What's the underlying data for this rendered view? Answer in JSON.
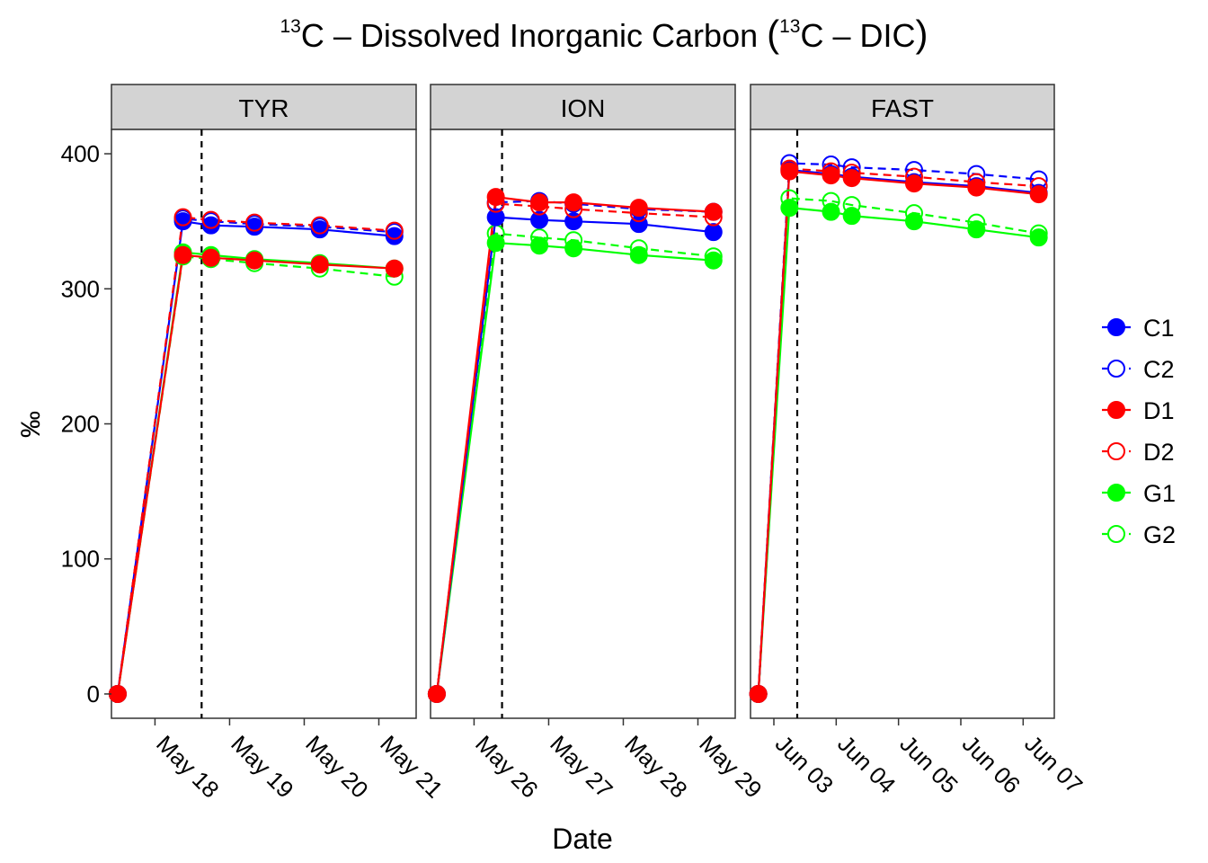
{
  "chart_data": {
    "type": "line",
    "title": {
      "iso1": "13",
      "part1": "C",
      "dash1": "–",
      "part2": "Dissolved Inorganic Carbon",
      "iso2": "13",
      "part3": "C",
      "dash2": "–",
      "part4": "DIC"
    },
    "xlabel": "Date",
    "ylabel": "‰",
    "ylim": [
      -18,
      418
    ],
    "yticks": [
      0,
      100,
      200,
      300,
      400
    ],
    "grid": false,
    "legend_position": "right",
    "series_styles": [
      {
        "name": "C1",
        "color": "#0000ff",
        "filled": true,
        "dashed": false
      },
      {
        "name": "C2",
        "color": "#0000ff",
        "filled": false,
        "dashed": true
      },
      {
        "name": "D1",
        "color": "#ff0000",
        "filled": true,
        "dashed": false
      },
      {
        "name": "D2",
        "color": "#ff0000",
        "filled": false,
        "dashed": true
      },
      {
        "name": "G1",
        "color": "#00ff00",
        "filled": true,
        "dashed": false
      },
      {
        "name": "G2",
        "color": "#00ff00",
        "filled": false,
        "dashed": true
      }
    ],
    "panels": [
      {
        "strip": "TYR",
        "xlim": [
          "2017-05-17T10:00",
          "2017-05-21T12:00"
        ],
        "xticks": [
          {
            "date": "2017-05-18T00:00",
            "label": "May 18"
          },
          {
            "date": "2017-05-19T00:00",
            "label": "May 19"
          },
          {
            "date": "2017-05-20T00:00",
            "label": "May 20"
          },
          {
            "date": "2017-05-21T00:00",
            "label": "May 21"
          }
        ],
        "vline": "2017-05-18T15:00",
        "series": [
          {
            "name": "C1",
            "x": [
              "2017-05-17T12:00",
              "2017-05-18T09:00",
              "2017-05-18T18:00",
              "2017-05-19T08:00",
              "2017-05-20T05:00",
              "2017-05-21T05:00"
            ],
            "y": [
              0,
              350,
              347,
              346,
              344,
              339
            ]
          },
          {
            "name": "C2",
            "x": [
              "2017-05-17T12:00",
              "2017-05-18T09:00",
              "2017-05-18T18:00",
              "2017-05-19T08:00",
              "2017-05-20T05:00",
              "2017-05-21T05:00"
            ],
            "y": [
              0,
              352,
              350,
              348,
              346,
              342
            ]
          },
          {
            "name": "D1",
            "x": [
              "2017-05-17T12:00",
              "2017-05-18T09:00",
              "2017-05-18T18:00",
              "2017-05-19T08:00",
              "2017-05-20T05:00",
              "2017-05-21T05:00"
            ],
            "y": [
              0,
              325,
              323,
              321,
              318,
              315
            ]
          },
          {
            "name": "D2",
            "x": [
              "2017-05-17T12:00",
              "2017-05-18T09:00",
              "2017-05-18T18:00",
              "2017-05-19T08:00",
              "2017-05-20T05:00",
              "2017-05-21T05:00"
            ],
            "y": [
              0,
              353,
              351,
              349,
              347,
              343
            ]
          },
          {
            "name": "G1",
            "x": [
              "2017-05-17T12:00",
              "2017-05-18T09:00",
              "2017-05-18T18:00",
              "2017-05-19T08:00",
              "2017-05-20T05:00",
              "2017-05-21T05:00"
            ],
            "y": [
              0,
              327,
              325,
              322,
              319,
              315
            ]
          },
          {
            "name": "G2",
            "x": [
              "2017-05-17T12:00",
              "2017-05-18T09:00",
              "2017-05-18T18:00",
              "2017-05-19T08:00",
              "2017-05-20T05:00",
              "2017-05-21T05:00"
            ],
            "y": [
              0,
              324,
              322,
              319,
              315,
              309
            ]
          }
        ]
      },
      {
        "strip": "ION",
        "xlim": [
          "2017-05-25T10:00",
          "2017-05-29T12:00"
        ],
        "xticks": [
          {
            "date": "2017-05-26T00:00",
            "label": "May 26"
          },
          {
            "date": "2017-05-27T00:00",
            "label": "May 27"
          },
          {
            "date": "2017-05-28T00:00",
            "label": "May 28"
          },
          {
            "date": "2017-05-29T00:00",
            "label": "May 29"
          }
        ],
        "vline": "2017-05-26T09:00",
        "series": [
          {
            "name": "C1",
            "x": [
              "2017-05-25T12:00",
              "2017-05-26T07:00",
              "2017-05-26T21:00",
              "2017-05-27T08:00",
              "2017-05-28T05:00",
              "2017-05-29T05:00"
            ],
            "y": [
              0,
              353,
              351,
              350,
              348,
              342
            ]
          },
          {
            "name": "C2",
            "x": [
              "2017-05-25T12:00",
              "2017-05-26T07:00",
              "2017-05-26T21:00",
              "2017-05-27T08:00",
              "2017-05-28T05:00",
              "2017-05-29T05:00"
            ],
            "y": [
              0,
              364,
              365,
              363,
              359,
              357
            ]
          },
          {
            "name": "D1",
            "x": [
              "2017-05-25T12:00",
              "2017-05-26T07:00",
              "2017-05-26T21:00",
              "2017-05-27T08:00",
              "2017-05-28T05:00",
              "2017-05-29T05:00"
            ],
            "y": [
              0,
              368,
              364,
              364,
              360,
              357
            ]
          },
          {
            "name": "D2",
            "x": [
              "2017-05-25T12:00",
              "2017-05-26T07:00",
              "2017-05-26T21:00",
              "2017-05-27T08:00",
              "2017-05-28T05:00",
              "2017-05-29T05:00"
            ],
            "y": [
              0,
              363,
              361,
              359,
              356,
              353
            ]
          },
          {
            "name": "G1",
            "x": [
              "2017-05-25T12:00",
              "2017-05-26T07:00",
              "2017-05-26T21:00",
              "2017-05-27T08:00",
              "2017-05-28T05:00",
              "2017-05-29T05:00"
            ],
            "y": [
              0,
              334,
              332,
              330,
              325,
              321
            ]
          },
          {
            "name": "G2",
            "x": [
              "2017-05-25T12:00",
              "2017-05-26T07:00",
              "2017-05-26T21:00",
              "2017-05-27T08:00",
              "2017-05-28T05:00",
              "2017-05-29T05:00"
            ],
            "y": [
              0,
              341,
              338,
              336,
              330,
              324
            ]
          }
        ]
      },
      {
        "strip": "FAST",
        "xlim": [
          "2017-06-02T15:00",
          "2017-06-07T12:00"
        ],
        "xticks": [
          {
            "date": "2017-06-03T00:00",
            "label": "Jun 03"
          },
          {
            "date": "2017-06-04T00:00",
            "label": "Jun 04"
          },
          {
            "date": "2017-06-05T00:00",
            "label": "Jun 05"
          },
          {
            "date": "2017-06-06T00:00",
            "label": "Jun 06"
          },
          {
            "date": "2017-06-07T00:00",
            "label": "Jun 07"
          }
        ],
        "vline": "2017-06-03T09:00",
        "series": [
          {
            "name": "C1",
            "x": [
              "2017-06-02T18:00",
              "2017-06-03T06:00",
              "2017-06-03T22:00",
              "2017-06-04T06:00",
              "2017-06-05T06:00",
              "2017-06-06T06:00",
              "2017-06-07T06:00"
            ],
            "y": [
              0,
              388,
              385,
              383,
              379,
              376,
              371
            ]
          },
          {
            "name": "C2",
            "x": [
              "2017-06-02T18:00",
              "2017-06-03T06:00",
              "2017-06-03T22:00",
              "2017-06-04T06:00",
              "2017-06-05T06:00",
              "2017-06-06T06:00",
              "2017-06-07T06:00"
            ],
            "y": [
              0,
              393,
              392,
              390,
              388,
              385,
              381
            ]
          },
          {
            "name": "D1",
            "x": [
              "2017-06-02T18:00",
              "2017-06-03T06:00",
              "2017-06-03T22:00",
              "2017-06-04T06:00",
              "2017-06-05T06:00",
              "2017-06-06T06:00",
              "2017-06-07T06:00"
            ],
            "y": [
              0,
              387,
              384,
              382,
              378,
              375,
              370
            ]
          },
          {
            "name": "D2",
            "x": [
              "2017-06-02T18:00",
              "2017-06-03T06:00",
              "2017-06-03T22:00",
              "2017-06-04T06:00",
              "2017-06-05T06:00",
              "2017-06-06T06:00",
              "2017-06-07T06:00"
            ],
            "y": [
              0,
              389,
              387,
              386,
              383,
              379,
              376
            ]
          },
          {
            "name": "G1",
            "x": [
              "2017-06-02T18:00",
              "2017-06-03T06:00",
              "2017-06-03T22:00",
              "2017-06-04T06:00",
              "2017-06-05T06:00",
              "2017-06-06T06:00",
              "2017-06-07T06:00"
            ],
            "y": [
              0,
              360,
              357,
              354,
              350,
              344,
              338
            ]
          },
          {
            "name": "G2",
            "x": [
              "2017-06-02T18:00",
              "2017-06-03T06:00",
              "2017-06-03T22:00",
              "2017-06-04T06:00",
              "2017-06-05T06:00",
              "2017-06-06T06:00",
              "2017-06-07T06:00"
            ],
            "y": [
              0,
              367,
              365,
              362,
              356,
              349,
              341
            ]
          }
        ]
      }
    ]
  }
}
